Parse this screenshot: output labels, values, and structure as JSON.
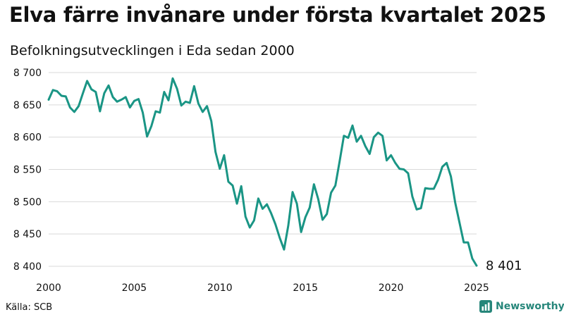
{
  "header": {
    "title": "Elva färre invånare under första kvartalet 2025",
    "subtitle": "Befolkningsutvecklingen i Eda sedan 2000"
  },
  "footer": {
    "source": "Källa: SCB",
    "brand": "Newsworthy",
    "brand_icon": "bar-chart-icon"
  },
  "colors": {
    "line": "#1a9585",
    "grid": "#d9d9d9",
    "brand": "#26867a"
  },
  "chart_data": {
    "type": "line",
    "title": "Elva färre invånare under första kvartalet 2025",
    "subtitle": "Befolkningsutvecklingen i Eda sedan 2000",
    "xlabel": "",
    "ylabel": "",
    "xlim": [
      2000,
      2025
    ],
    "ylim": [
      8400,
      8700
    ],
    "x_ticks": [
      2000,
      2005,
      2010,
      2015,
      2020,
      2025
    ],
    "x_tick_labels": [
      "2000",
      "2005",
      "2010",
      "2015",
      "2020",
      "2025"
    ],
    "y_ticks": [
      8400,
      8450,
      8500,
      8550,
      8600,
      8650,
      8700
    ],
    "y_tick_labels": [
      "8 400",
      "8 450",
      "8 500",
      "8 550",
      "8 600",
      "8 650",
      "8 700"
    ],
    "grid": "horizontal",
    "end_label": "8 401",
    "series": [
      {
        "x": [
          2000.0,
          2000.25,
          2000.5,
          2000.75,
          2001.0,
          2001.25,
          2001.5,
          2001.75,
          2002.0,
          2002.25,
          2002.5,
          2002.75,
          2003.0,
          2003.25,
          2003.5,
          2003.75,
          2004.0,
          2004.25,
          2004.5,
          2004.75,
          2005.0,
          2005.25,
          2005.5,
          2005.75,
          2006.0,
          2006.25,
          2006.5,
          2006.75,
          2007.0,
          2007.25,
          2007.5,
          2007.75,
          2008.0,
          2008.25,
          2008.5,
          2008.75,
          2009.0,
          2009.25,
          2009.5,
          2009.75,
          2010.0,
          2010.25,
          2010.5,
          2010.75,
          2011.0,
          2011.25,
          2011.5,
          2011.75,
          2012.0,
          2012.25,
          2012.5,
          2012.75,
          2013.0,
          2013.25,
          2013.5,
          2013.75,
          2014.0,
          2014.25,
          2014.5,
          2014.75,
          2015.0,
          2015.25,
          2015.5,
          2015.75,
          2016.0,
          2016.25,
          2016.5,
          2016.75,
          2017.0,
          2017.25,
          2017.5,
          2017.75,
          2018.0,
          2018.25,
          2018.5,
          2018.75,
          2019.0,
          2019.25,
          2019.5,
          2019.75,
          2020.0,
          2020.25,
          2020.5,
          2020.75,
          2021.0,
          2021.25,
          2021.5,
          2021.75,
          2022.0,
          2022.25,
          2022.5,
          2022.75,
          2023.0,
          2023.25,
          2023.5,
          2023.75,
          2024.0,
          2024.25,
          2024.5,
          2024.75,
          2025.0
        ],
        "values": [
          8658,
          8673,
          8671,
          8664,
          8663,
          8646,
          8639,
          8648,
          8668,
          8687,
          8674,
          8670,
          8640,
          8668,
          8680,
          8662,
          8655,
          8658,
          8662,
          8646,
          8656,
          8659,
          8638,
          8601,
          8617,
          8640,
          8638,
          8670,
          8657,
          8691,
          8675,
          8649,
          8655,
          8653,
          8679,
          8652,
          8639,
          8648,
          8625,
          8577,
          8551,
          8572,
          8531,
          8525,
          8497,
          8524,
          8477,
          8460,
          8471,
          8505,
          8489,
          8496,
          8482,
          8465,
          8444,
          8426,
          8463,
          8515,
          8497,
          8453,
          8476,
          8491,
          8527,
          8504,
          8472,
          8481,
          8514,
          8525,
          8563,
          8602,
          8599,
          8618,
          8593,
          8602,
          8586,
          8574,
          8600,
          8607,
          8602,
          8564,
          8572,
          8560,
          8551,
          8550,
          8544,
          8508,
          8488,
          8490,
          8521,
          8520,
          8520,
          8534,
          8554,
          8560,
          8539,
          8499,
          8468,
          8437,
          8437,
          8412,
          8401
        ]
      }
    ]
  }
}
